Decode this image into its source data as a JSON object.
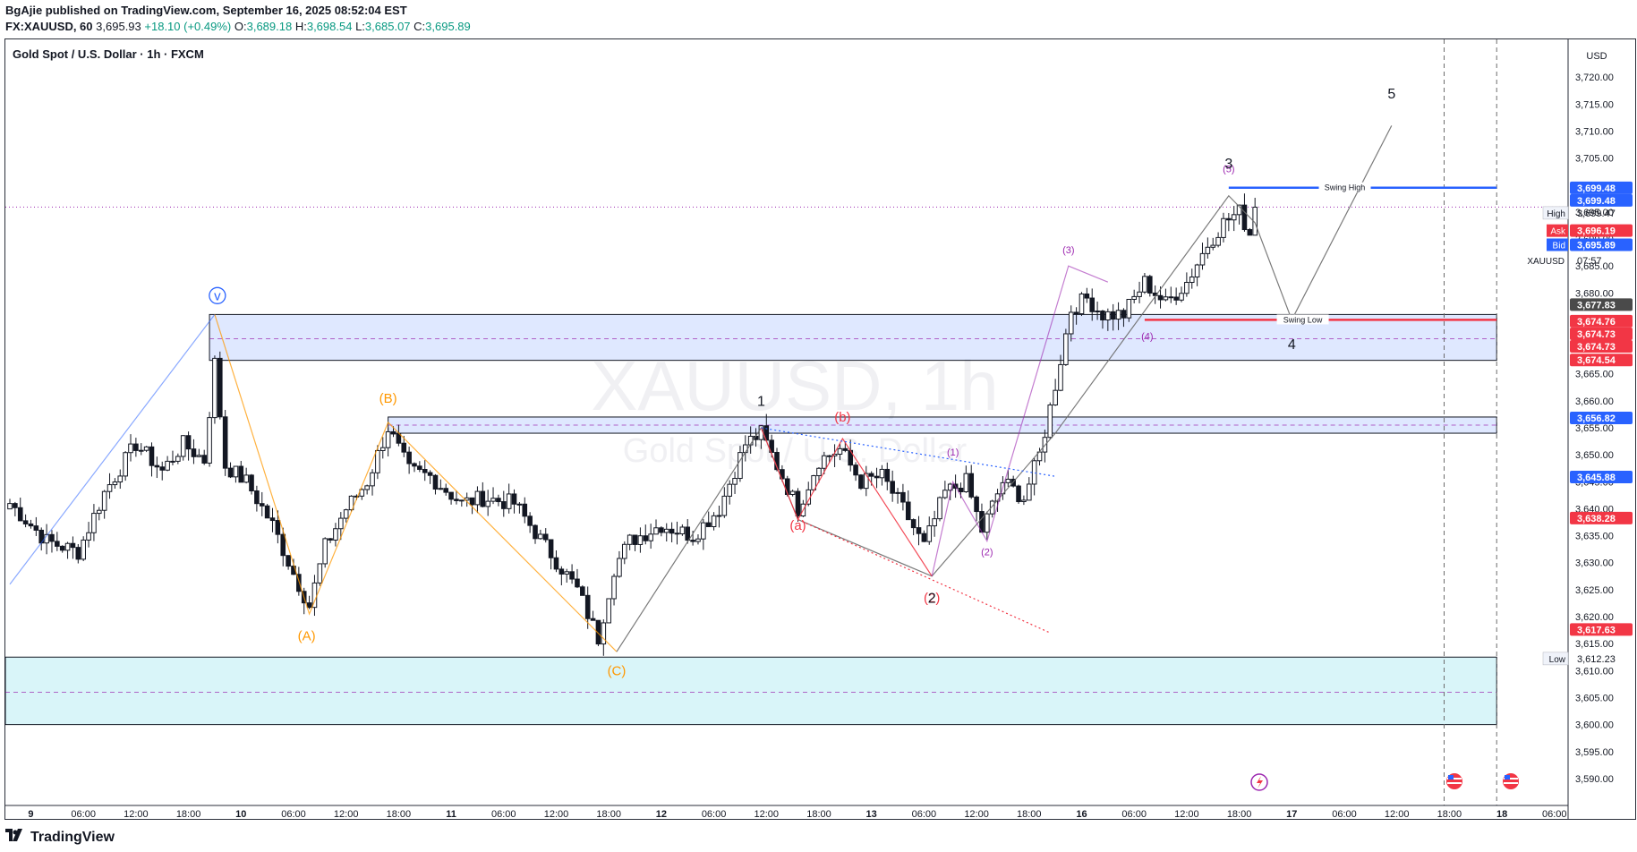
{
  "header": {
    "published": "BgAjie published on TradingView.com, September 16, 2025 08:52:04 EST",
    "symbol_line": "FX:XAUUSD, 60",
    "last": "3,695.93",
    "change": "+18.10 (+0.49%)",
    "open_label": "O:",
    "open": "3,689.18",
    "high_label": "H:",
    "high": "3,698.54",
    "low_label": "L:",
    "low": "3,685.07",
    "close_label": "C:",
    "close": "3,695.89"
  },
  "chart_title": "Gold Spot / U.S. Dollar · 1h · FXCM",
  "watermark": {
    "main": "XAUUSD, 1h",
    "sub": "Gold Spot / U.S. Dollar"
  },
  "footer": {
    "brand": "TradingView"
  },
  "colors": {
    "up": "#089981",
    "down": "#f23645",
    "blue": "#2962ff",
    "orange": "#ff9800",
    "purple": "#9c27b0"
  },
  "chart_data": {
    "type": "candlestick",
    "currency": "USD",
    "ylim": [
      3587,
      3724
    ],
    "y_ticks": [
      3590,
      3595,
      3600,
      3605,
      3610,
      3615,
      3620,
      3625,
      3630,
      3635,
      3640,
      3645,
      3650,
      3655,
      3660,
      3665,
      3670,
      3675,
      3680,
      3685,
      3690,
      3695,
      3700,
      3705,
      3710,
      3715,
      3720
    ],
    "y_tick_labels": [
      "3,590.00",
      "3,595.00",
      "3,600.00",
      "3,605.00",
      "3,610.00",
      "3,615.00",
      "3,620.00",
      "3,625.00",
      "3,630.00",
      "3,635.00",
      "3,640.00",
      "3,645.00",
      "3,650.00",
      "3,655.00",
      "3,660.00",
      "3,665.00",
      "3,670.00",
      "3,675.00",
      "3,680.00",
      "3,685.00",
      "3,690.00",
      "3,695.00",
      "3,700.00",
      "3,705.00",
      "3,710.00",
      "3,715.00",
      "3,720.00"
    ],
    "x_ticks": [
      {
        "bar": 4,
        "label": "9"
      },
      {
        "bar": 14,
        "label": "06:00"
      },
      {
        "bar": 24,
        "label": "12:00"
      },
      {
        "bar": 34,
        "label": "18:00"
      },
      {
        "bar": 44,
        "label": "10"
      },
      {
        "bar": 54,
        "label": "06:00"
      },
      {
        "bar": 64,
        "label": "12:00"
      },
      {
        "bar": 74,
        "label": "18:00"
      },
      {
        "bar": 84,
        "label": "11"
      },
      {
        "bar": 94,
        "label": "06:00"
      },
      {
        "bar": 104,
        "label": "12:00"
      },
      {
        "bar": 114,
        "label": "18:00"
      },
      {
        "bar": 124,
        "label": "12"
      },
      {
        "bar": 134,
        "label": "06:00"
      },
      {
        "bar": 144,
        "label": "12:00"
      },
      {
        "bar": 154,
        "label": "18:00"
      },
      {
        "bar": 164,
        "label": "13"
      },
      {
        "bar": 174,
        "label": "06:00"
      },
      {
        "bar": 184,
        "label": "12:00"
      },
      {
        "bar": 194,
        "label": "18:00"
      },
      {
        "bar": 204,
        "label": "16"
      },
      {
        "bar": 214,
        "label": "06:00"
      },
      {
        "bar": 224,
        "label": "12:00"
      },
      {
        "bar": 234,
        "label": "18:00"
      },
      {
        "bar": 244,
        "label": "17"
      },
      {
        "bar": 254,
        "label": "06:00"
      },
      {
        "bar": 264,
        "label": "12:00"
      },
      {
        "bar": 274,
        "label": "18:00"
      },
      {
        "bar": 284,
        "label": "18"
      },
      {
        "bar": 294,
        "label": "06:00"
      }
    ],
    "waypoints": [
      [
        0,
        3641
      ],
      [
        3,
        3638
      ],
      [
        7,
        3634
      ],
      [
        13,
        3632
      ],
      [
        18,
        3643
      ],
      [
        24,
        3652
      ],
      [
        29,
        3647
      ],
      [
        33,
        3652
      ],
      [
        37,
        3649
      ],
      [
        39,
        3667
      ],
      [
        41,
        3648
      ],
      [
        45,
        3645
      ],
      [
        50,
        3637
      ],
      [
        54,
        3628
      ],
      [
        57,
        3622
      ],
      [
        60,
        3633
      ],
      [
        64,
        3640
      ],
      [
        68,
        3645
      ],
      [
        72,
        3655
      ],
      [
        76,
        3647
      ],
      [
        80,
        3646
      ],
      [
        86,
        3641
      ],
      [
        90,
        3642
      ],
      [
        96,
        3641
      ],
      [
        102,
        3633
      ],
      [
        108,
        3625
      ],
      [
        112,
        3616
      ],
      [
        115,
        3629
      ],
      [
        118,
        3634
      ],
      [
        124,
        3637
      ],
      [
        130,
        3635
      ],
      [
        135,
        3640
      ],
      [
        140,
        3652
      ],
      [
        143,
        3654
      ],
      [
        146,
        3648
      ],
      [
        150,
        3640
      ],
      [
        154,
        3649
      ],
      [
        158,
        3651
      ],
      [
        162,
        3645
      ],
      [
        166,
        3646
      ],
      [
        170,
        3640
      ],
      [
        174,
        3633
      ],
      [
        178,
        3643
      ],
      [
        182,
        3645
      ],
      [
        185,
        3636
      ],
      [
        189,
        3645
      ],
      [
        193,
        3642
      ],
      [
        196,
        3650
      ],
      [
        199,
        3663
      ],
      [
        202,
        3677
      ],
      [
        205,
        3679
      ],
      [
        208,
        3676
      ],
      [
        212,
        3676
      ],
      [
        216,
        3682
      ],
      [
        220,
        3678
      ],
      [
        224,
        3682
      ],
      [
        228,
        3689
      ],
      [
        231,
        3693
      ],
      [
        234,
        3695
      ],
      [
        236,
        3691
      ],
      [
        237,
        3695.9
      ]
    ],
    "sample_candles": [
      {
        "time": "16 19:00",
        "open": 3689.18,
        "high": 3698.54,
        "low": 3685.07,
        "close": 3695.89
      }
    ],
    "last_price": 3695.89,
    "price_labels": [
      {
        "price": 3699.48,
        "text": "3,699.48",
        "color": "#2962ff"
      },
      {
        "price": 3699.48,
        "text": "3,699.48",
        "color": "#2962ff"
      },
      {
        "price": 3699.47,
        "text": "3,699.47",
        "tag": "High"
      },
      {
        "price": 3696.19,
        "text": "3,696.19",
        "tag": "Ask",
        "color": "#f23645"
      },
      {
        "price": 3695.89,
        "text": "3,695.89",
        "tag": "Bid",
        "color": "#2962ff"
      },
      {
        "price": 3693.0,
        "text": "07:57",
        "tag": "XAUUSD"
      },
      {
        "price": 3677.83,
        "text": "3,677.83",
        "color": "#4a4a4a"
      },
      {
        "price": 3674.76,
        "text": "3,674.76",
        "color": "#f23645"
      },
      {
        "price": 3674.73,
        "text": "3,674.73",
        "color": "#f23645"
      },
      {
        "price": 3674.73,
        "text": "3,674.73",
        "color": "#f23645"
      },
      {
        "price": 3674.54,
        "text": "3,674.54",
        "color": "#f23645"
      },
      {
        "price": 3656.82,
        "text": "3,656.82",
        "color": "#2962ff"
      },
      {
        "price": 3645.88,
        "text": "3,645.88",
        "color": "#2962ff"
      },
      {
        "price": 3638.28,
        "text": "3,638.28",
        "color": "#f23645"
      },
      {
        "price": 3617.63,
        "text": "3,617.63",
        "color": "#f23645"
      },
      {
        "price": 3612.23,
        "text": "3,612.23",
        "tag": "Low"
      }
    ],
    "zones": [
      {
        "x1": 38,
        "x2": 283,
        "y1": 3667.5,
        "y2": 3676,
        "mid": 3671.5,
        "color": "#2962ff"
      },
      {
        "x1": 72,
        "x2": 283,
        "y1": 3654,
        "y2": 3657,
        "mid": 3655.5,
        "color": "#2962ff"
      },
      {
        "x1": -1,
        "x2": 283,
        "y1": 3600,
        "y2": 3612.5,
        "mid": 3606,
        "color": "#00bcd4"
      }
    ],
    "horizontal_lines": [
      {
        "x1": 232,
        "x2": 283,
        "y": 3699.5,
        "color": "#2962ff",
        "text": "Swing High"
      },
      {
        "x1": 216,
        "x2": 283,
        "y": 3675,
        "color": "#f23645",
        "text": "Swing Low"
      }
    ],
    "wave_labels": [
      {
        "bar": 39.5,
        "price": 3679.5,
        "text": "v",
        "color": "#2962ff",
        "circle": true
      },
      {
        "bar": 56.5,
        "price": 3616.5,
        "text": "(A)",
        "color": "#ff9800"
      },
      {
        "bar": 72,
        "price": 3660.5,
        "text": "(B)",
        "color": "#ff9800"
      },
      {
        "bar": 115.5,
        "price": 3610.0,
        "text": "(C)",
        "color": "#ff9800"
      },
      {
        "bar": 143,
        "price": 3660.0,
        "text": "1",
        "color": "#131722"
      },
      {
        "bar": 150,
        "price": 3637.0,
        "text": "(a)",
        "color": "#f23645"
      },
      {
        "bar": 158.5,
        "price": 3657.0,
        "text": "(b)",
        "color": "#f23645"
      },
      {
        "bar": 175.5,
        "price": 3623.5,
        "text": "(2)",
        "color": "#f23645"
      },
      {
        "bar": 175.5,
        "price": 3623.5,
        "text": "2",
        "color": "#131722"
      },
      {
        "bar": 179.5,
        "price": 3650.5,
        "text": "(1)",
        "color": "#9c27b0"
      },
      {
        "bar": 186,
        "price": 3632.0,
        "text": "(2)",
        "color": "#9c27b0"
      },
      {
        "bar": 201.5,
        "price": 3688.0,
        "text": "(3)",
        "color": "#9c27b0"
      },
      {
        "bar": 216.5,
        "price": 3672.0,
        "text": "(4)",
        "color": "#9c27b0"
      },
      {
        "bar": 232,
        "price": 3703.0,
        "text": "(5)",
        "color": "#9c27b0"
      },
      {
        "bar": 232,
        "price": 3704.0,
        "text": "3",
        "color": "#131722"
      },
      {
        "bar": 244,
        "price": 3670.5,
        "text": "4",
        "color": "#131722"
      },
      {
        "bar": 263,
        "price": 3717.0,
        "text": "5",
        "color": "#131722"
      }
    ],
    "wave_paths": [
      {
        "color": "#2962ff",
        "opacity": 0.55,
        "points": [
          [
            0,
            3626.0
          ],
          [
            39,
            3676.0
          ]
        ]
      },
      {
        "color": "#ff9800",
        "opacity": 0.75,
        "points": [
          [
            39,
            3676.0
          ],
          [
            57,
            3620.5
          ],
          [
            72,
            3656.0
          ],
          [
            115.5,
            3613.5
          ]
        ]
      },
      {
        "color": "#6b6b6b",
        "opacity": 0.9,
        "points": [
          [
            115.5,
            3613.5
          ],
          [
            143,
            3655.0
          ],
          [
            150,
            3638.0
          ],
          [
            175.5,
            3627.5
          ],
          [
            199,
            3654.0
          ],
          [
            232,
            3698.0
          ],
          [
            237,
            3693.0
          ],
          [
            244,
            3675.0
          ],
          [
            263,
            3711.0
          ]
        ]
      },
      {
        "color": "#f23645",
        "opacity": 0.9,
        "points": [
          [
            143,
            3655.0
          ],
          [
            150,
            3638.0
          ],
          [
            158.5,
            3653.0
          ],
          [
            175.5,
            3627.5
          ]
        ]
      },
      {
        "color": "#9c27b0",
        "opacity": 0.6,
        "points": [
          [
            175.5,
            3627.5
          ],
          [
            179.5,
            3645.0
          ],
          [
            186,
            3634.0
          ],
          [
            201.5,
            3685.0
          ],
          [
            209,
            3682.0
          ]
        ]
      }
    ],
    "dotted_lines": [
      {
        "color": "#2962ff",
        "points": [
          [
            143,
            3655.0
          ],
          [
            199,
            3646.0
          ]
        ]
      },
      {
        "color": "#f23645",
        "points": [
          [
            150,
            3638.0
          ],
          [
            198,
            3617.0
          ]
        ]
      }
    ],
    "last_price_line": {
      "price": 3695.9,
      "color": "#9c27b0"
    },
    "vertical_lines": [
      {
        "bar": 273
      },
      {
        "bar": 283
      }
    ]
  }
}
